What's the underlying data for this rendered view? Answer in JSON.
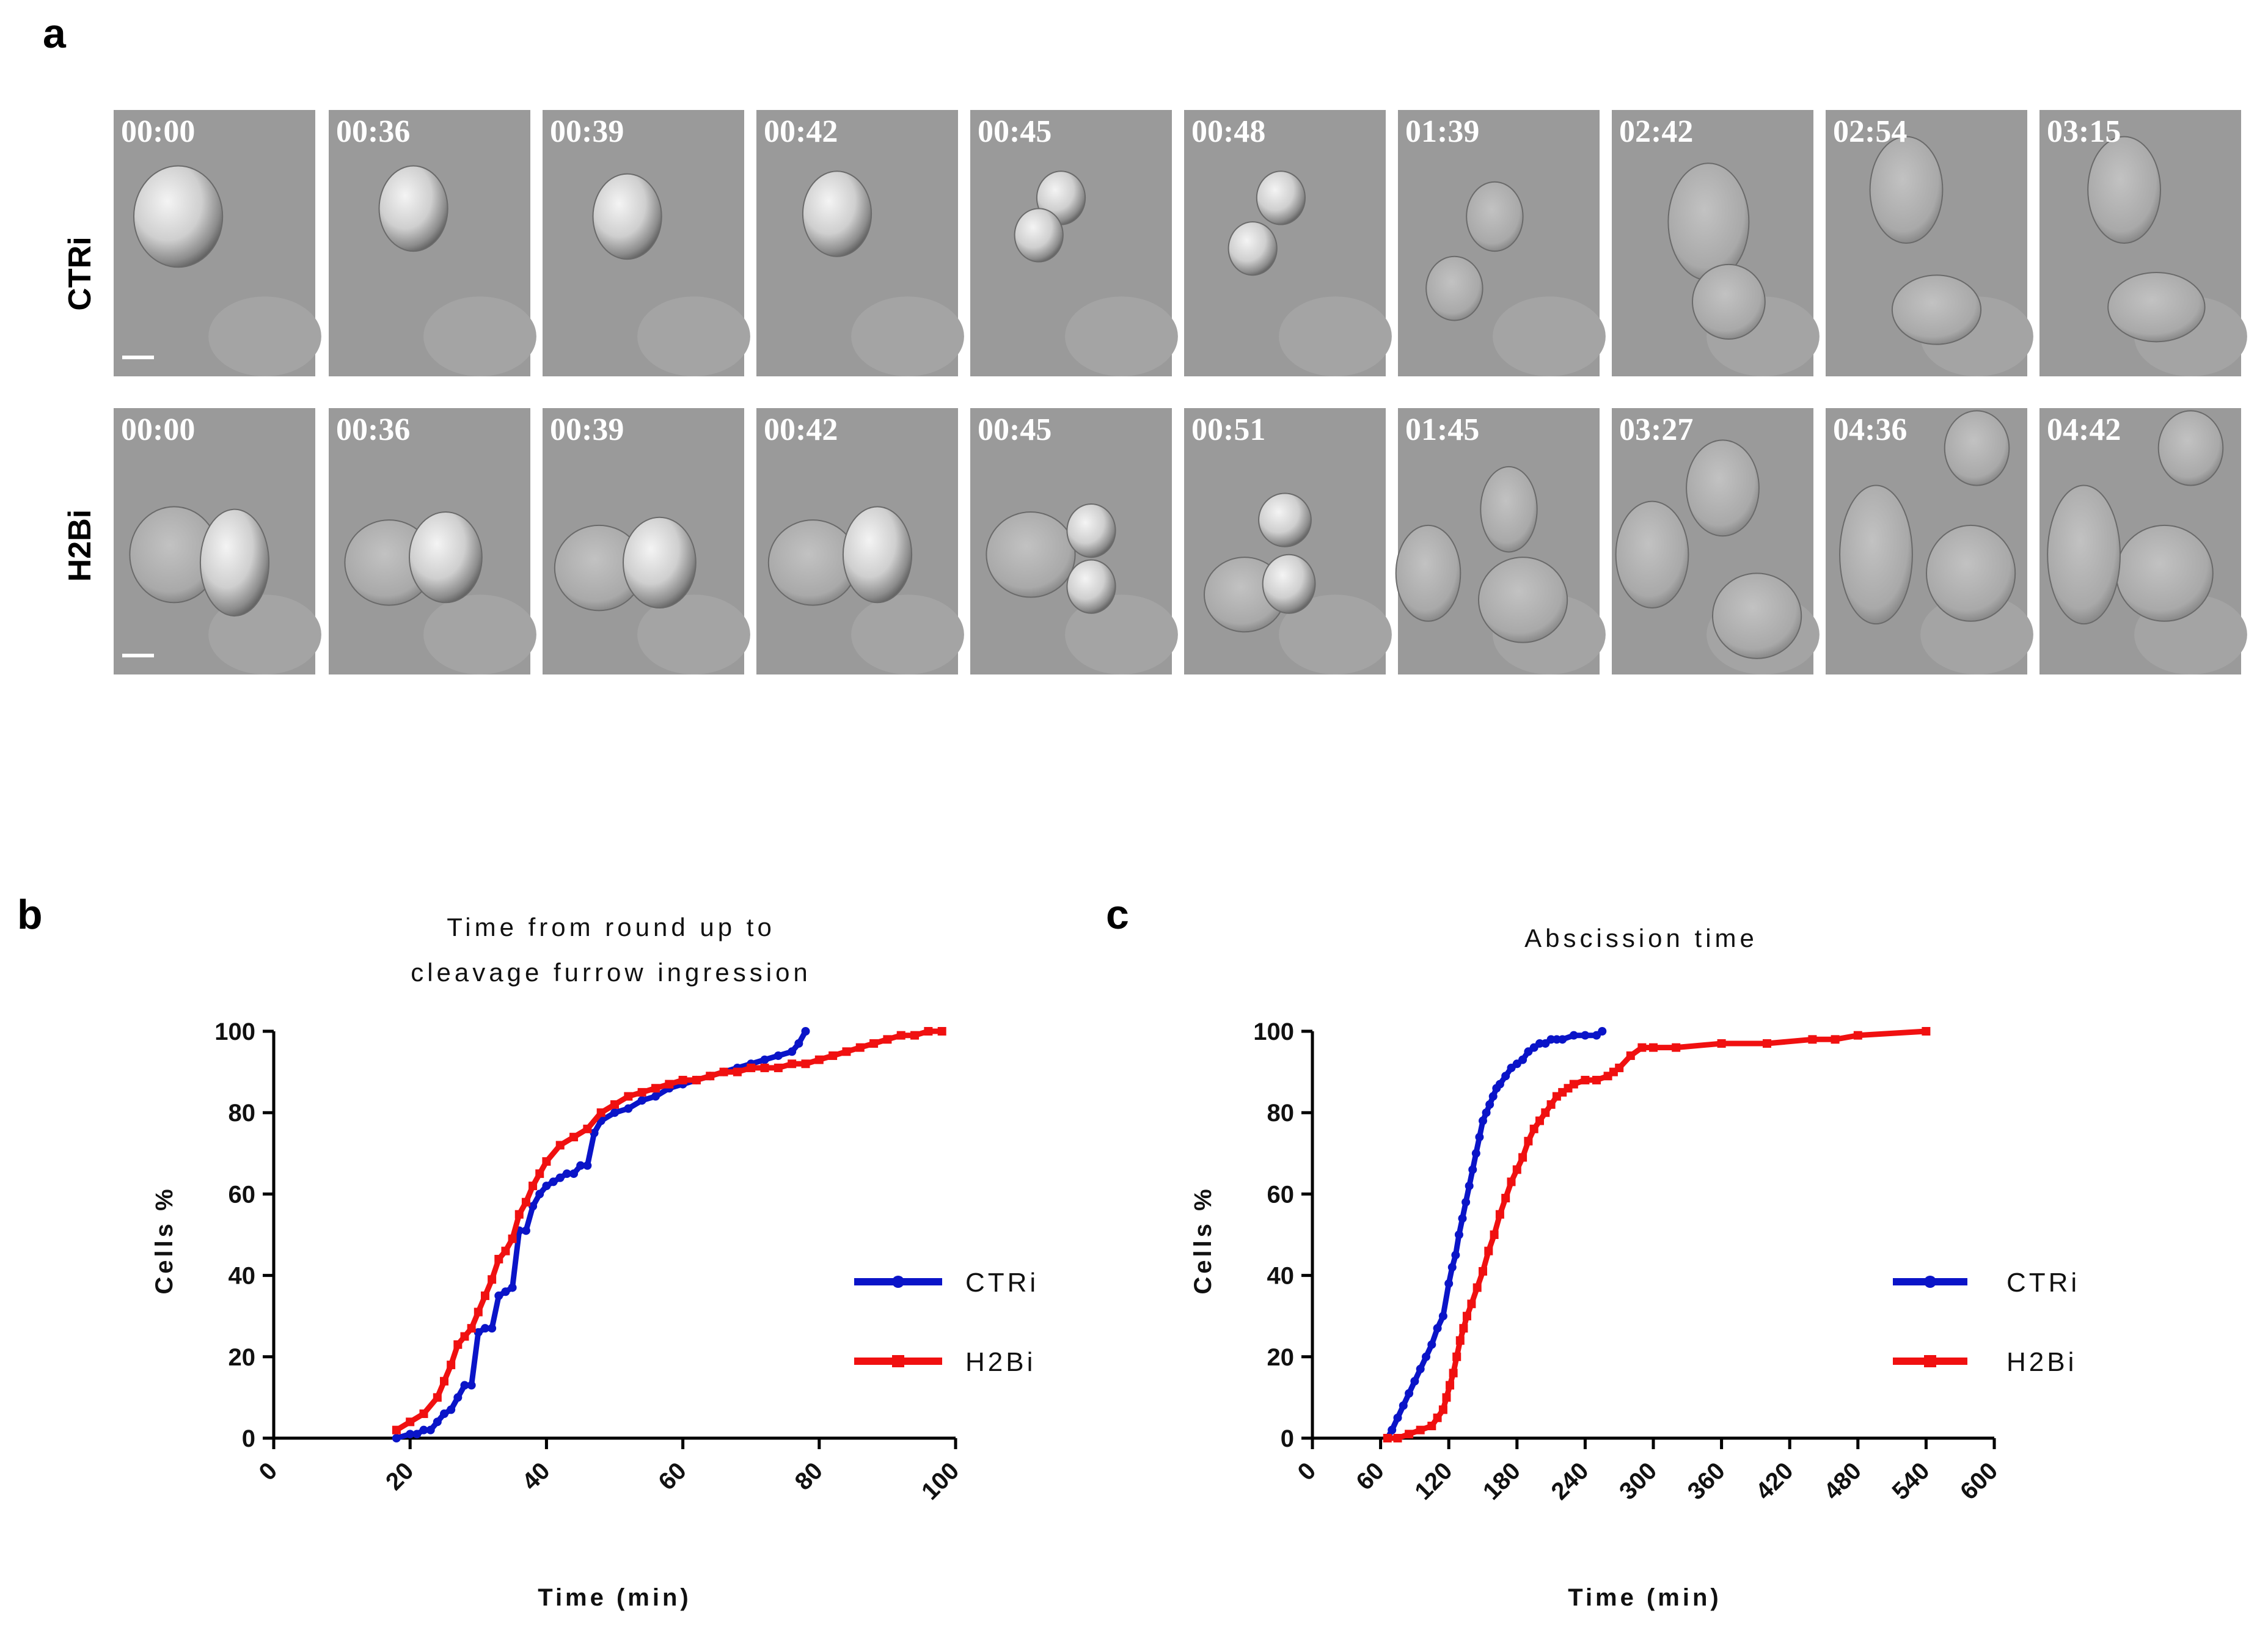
{
  "panel_labels": {
    "a": "a",
    "b": "b",
    "c": "c"
  },
  "row_labels": [
    "CTRi",
    "H2Bi"
  ],
  "timestamps": {
    "CTRi": [
      "00:00",
      "00:36",
      "00:39",
      "00:42",
      "00:45",
      "00:48",
      "01:39",
      "02:42",
      "02:54",
      "03:15"
    ],
    "H2Bi": [
      "00:00",
      "00:36",
      "00:39",
      "00:42",
      "00:45",
      "00:51",
      "01:45",
      "03:27",
      "04:36",
      "04:42"
    ]
  },
  "colors": {
    "CTRi": "#0a14c8",
    "H2Bi": "#f01010",
    "frame_bg": "#9a9a9a"
  },
  "chart_data": [
    {
      "type": "line",
      "title": [
        "Time from round up to",
        "cleavage furrow ingression"
      ],
      "xlabel": "Time (min)",
      "ylabel": "Cells %",
      "xlim": [
        0,
        100
      ],
      "ylim": [
        0,
        100
      ],
      "xticks": [
        0,
        20,
        40,
        60,
        80,
        100
      ],
      "yticks": [
        0,
        20,
        40,
        60,
        80,
        100
      ],
      "legend": "right",
      "series": [
        {
          "name": "CTRi",
          "marker": "circle",
          "x": [
            18,
            20,
            21,
            22,
            23,
            24,
            25,
            26,
            27,
            28,
            29,
            30,
            31,
            32,
            33,
            34,
            35,
            36,
            37,
            38,
            39,
            40,
            41,
            42,
            43,
            44,
            45,
            46,
            47,
            48,
            50,
            52,
            54,
            56,
            58,
            60,
            62,
            64,
            66,
            68,
            70,
            72,
            74,
            76,
            77,
            78
          ],
          "y": [
            0,
            1,
            1,
            2,
            2,
            4,
            6,
            7,
            10,
            13,
            13,
            26,
            27,
            27,
            35,
            36,
            37,
            51,
            51,
            57,
            60,
            62,
            63,
            64,
            65,
            65,
            67,
            67,
            75,
            78,
            80,
            81,
            83,
            84,
            86,
            87,
            88,
            89,
            90,
            91,
            92,
            93,
            94,
            95,
            97,
            100
          ]
        },
        {
          "name": "H2Bi",
          "marker": "square",
          "x": [
            18,
            20,
            22,
            24,
            25,
            26,
            27,
            28,
            29,
            30,
            31,
            32,
            33,
            34,
            35,
            36,
            37,
            38,
            39,
            40,
            42,
            44,
            46,
            48,
            50,
            52,
            54,
            56,
            58,
            60,
            62,
            64,
            66,
            68,
            70,
            72,
            74,
            76,
            78,
            80,
            82,
            84,
            86,
            88,
            90,
            92,
            94,
            96,
            98
          ],
          "y": [
            2,
            4,
            6,
            10,
            14,
            18,
            23,
            25,
            27,
            31,
            35,
            39,
            44,
            46,
            49,
            55,
            58,
            62,
            65,
            68,
            72,
            74,
            76,
            80,
            82,
            84,
            85,
            86,
            87,
            88,
            88,
            89,
            90,
            90,
            91,
            91,
            91,
            92,
            92,
            93,
            94,
            95,
            96,
            97,
            98,
            99,
            99,
            100,
            100
          ]
        }
      ]
    },
    {
      "type": "line",
      "title": [
        "Abscission time"
      ],
      "xlabel": "Time (min)",
      "ylabel": "Cells %",
      "xlim": [
        0,
        600
      ],
      "ylim": [
        0,
        100
      ],
      "xticks": [
        0,
        60,
        120,
        180,
        240,
        300,
        360,
        420,
        480,
        540,
        600
      ],
      "yticks": [
        0,
        20,
        40,
        60,
        80,
        100
      ],
      "legend": "right",
      "series": [
        {
          "name": "CTRi",
          "marker": "circle",
          "x": [
            66,
            70,
            75,
            80,
            85,
            90,
            95,
            100,
            105,
            110,
            115,
            120,
            123,
            126,
            129,
            132,
            135,
            138,
            141,
            144,
            147,
            150,
            153,
            156,
            159,
            162,
            165,
            170,
            175,
            180,
            185,
            190,
            195,
            200,
            205,
            210,
            215,
            220,
            230,
            240,
            250,
            255
          ],
          "y": [
            0,
            2,
            5,
            8,
            11,
            14,
            17,
            20,
            23,
            27,
            30,
            38,
            42,
            45,
            50,
            54,
            58,
            62,
            66,
            70,
            74,
            78,
            80,
            82,
            84,
            86,
            87,
            89,
            91,
            92,
            93,
            95,
            96,
            97,
            97,
            98,
            98,
            98,
            99,
            99,
            99,
            100
          ]
        },
        {
          "name": "H2Bi",
          "marker": "square",
          "x": [
            66,
            75,
            85,
            95,
            105,
            110,
            115,
            118,
            121,
            124,
            127,
            130,
            133,
            136,
            140,
            145,
            150,
            155,
            160,
            165,
            170,
            175,
            180,
            185,
            190,
            195,
            200,
            205,
            210,
            215,
            220,
            225,
            230,
            240,
            250,
            260,
            265,
            270,
            280,
            290,
            300,
            320,
            360,
            400,
            440,
            460,
            480,
            540
          ],
          "y": [
            0,
            0,
            1,
            2,
            3,
            5,
            7,
            10,
            13,
            16,
            20,
            24,
            27,
            30,
            33,
            37,
            41,
            46,
            50,
            55,
            59,
            63,
            66,
            69,
            73,
            76,
            78,
            80,
            82,
            84,
            85,
            86,
            87,
            88,
            88,
            89,
            90,
            91,
            94,
            96,
            96,
            96,
            97,
            97,
            98,
            98,
            99,
            100
          ]
        }
      ]
    }
  ]
}
